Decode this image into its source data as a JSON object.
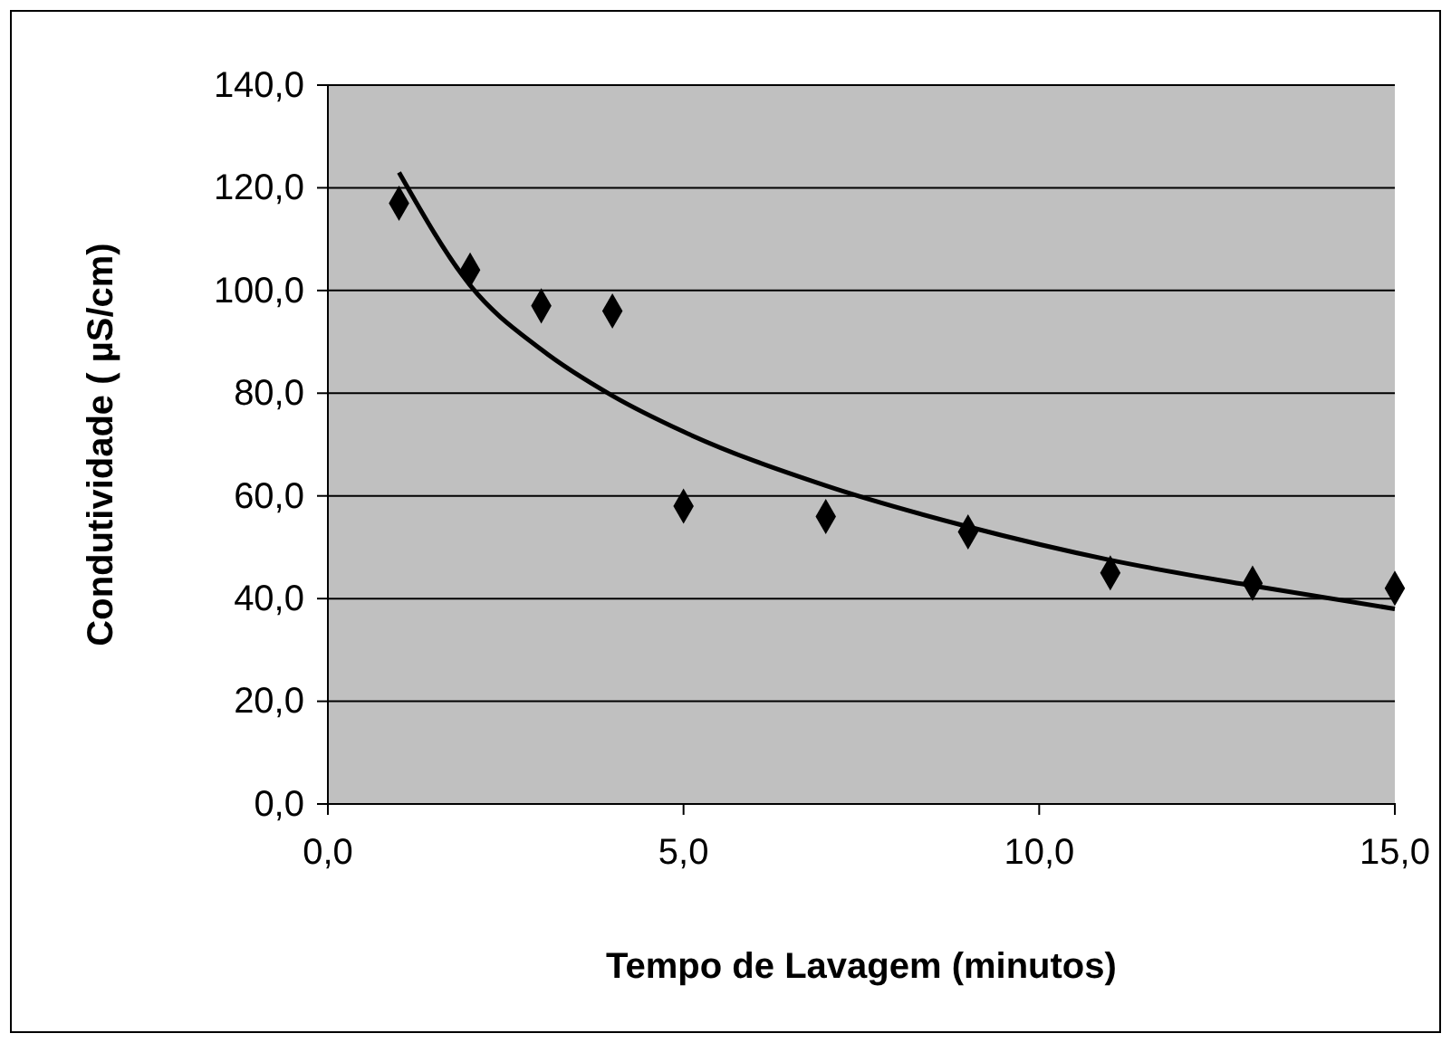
{
  "chart_data": {
    "type": "scatter",
    "xlabel": "Tempo de Lavagem (minutos)",
    "ylabel": "Condutividade (  µS/cm)",
    "xlim": [
      0,
      15
    ],
    "xticks": [
      {
        "value": 0,
        "label": "0,0"
      },
      {
        "value": 5,
        "label": "5,0"
      },
      {
        "value": 10,
        "label": "10,0"
      },
      {
        "value": 15,
        "label": "15,0"
      }
    ],
    "ylim": [
      0,
      140
    ],
    "yticks": [
      {
        "value": 0,
        "label": "0,0"
      },
      {
        "value": 20,
        "label": "20,0"
      },
      {
        "value": 40,
        "label": "40,0"
      },
      {
        "value": 60,
        "label": "60,0"
      },
      {
        "value": 80,
        "label": "80,0"
      },
      {
        "value": 100,
        "label": "100,0"
      },
      {
        "value": 120,
        "label": "120,0"
      },
      {
        "value": 140,
        "label": "140,0"
      }
    ],
    "grid": "y",
    "marker": "diamond",
    "series": [
      {
        "color": "#000000",
        "x": [
          1,
          2,
          3,
          4,
          5,
          7,
          9,
          11,
          13,
          15
        ],
        "values": [
          117,
          104,
          97,
          96,
          58,
          56,
          53,
          45,
          43,
          42
        ]
      },
      {
        "type": "line",
        "color": "#000000",
        "marker": "none",
        "line_style": "solid",
        "x": [
          1,
          2,
          3,
          4,
          5,
          7,
          9,
          11,
          13,
          15
        ],
        "values": [
          123,
          101,
          88.5,
          79.5,
          72.5,
          62,
          54,
          47.5,
          42.5,
          38
        ]
      }
    ]
  }
}
